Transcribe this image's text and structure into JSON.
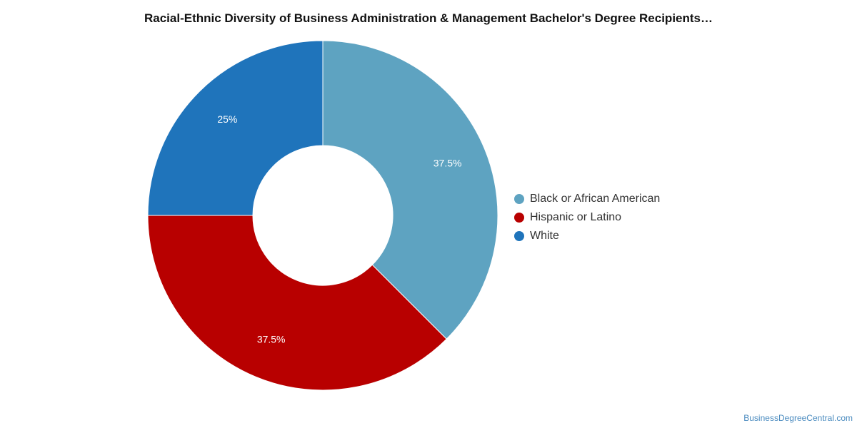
{
  "title": "Racial-Ethnic Diversity of Business Administration & Management Bachelor's Degree Recipients…",
  "source": "BusinessDegreeCentral.com",
  "chart_data": {
    "type": "pie",
    "donut": true,
    "title": "Racial-Ethnic Diversity of Business Administration & Management Bachelor's Degree Recipients…",
    "legend_position": "right",
    "series": [
      {
        "name": "Black or African American",
        "value": 37.5,
        "label": "37.5%",
        "color": "#5ea3c1"
      },
      {
        "name": "Hispanic or Latino",
        "value": 37.5,
        "label": "37.5%",
        "color": "#b80000"
      },
      {
        "name": "White",
        "value": 25,
        "label": "25%",
        "color": "#1f74bb"
      }
    ]
  }
}
